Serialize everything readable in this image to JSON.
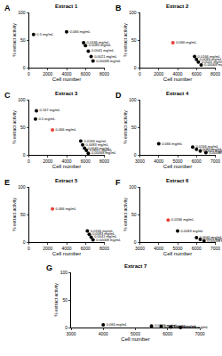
{
  "chart_data": [
    {
      "type": "scatter",
      "panel_label": "A",
      "title": "Extract 1",
      "x_label": "Cell number",
      "y_label": "% extract activity",
      "x": [
        500,
        4000,
        5800,
        6000,
        6300,
        6600,
        6800
      ],
      "values": [
        60,
        65,
        45,
        40,
        30,
        20,
        12
      ],
      "annotations": [
        "0.5 mg/mL",
        "0.066 mg/mL",
        "0.0166 mg/mL",
        "0.0083 mg/mL",
        "0.0041 mg/mL",
        "0.0021 mg/mL",
        "0.00068 mg/mL"
      ],
      "colors": [
        "#000000",
        "#000000",
        "#000000",
        "#000000",
        "#000000",
        "#000000",
        "#000000"
      ],
      "xlim": [
        0,
        8000
      ],
      "xticks": [
        0,
        2000,
        4000,
        6000,
        8000
      ],
      "ylim": [
        0,
        100
      ],
      "yticks": [
        0,
        50,
        100
      ]
    },
    {
      "type": "scatter",
      "panel_label": "B",
      "title": "Extract 2",
      "x_label": "Cell number",
      "y_label": "% extract activity",
      "x": [
        3500,
        5800,
        6000,
        6200,
        6500
      ],
      "values": [
        45,
        20,
        15,
        10,
        5
      ],
      "annotations": [
        "0.066 mg/mL",
        "0.0166 mg/mL",
        "0.0083 mg/mL",
        "0.0041 mg/mL",
        "0.00068 mg/mL"
      ],
      "colors": [
        "#e8413a",
        "#000000",
        "#000000",
        "#000000",
        "#000000"
      ],
      "xlim": [
        0,
        8000
      ],
      "xticks": [
        0,
        2000,
        4000,
        6000,
        8000
      ],
      "ylim": [
        0,
        100
      ],
      "yticks": [
        0,
        50,
        100
      ]
    },
    {
      "type": "scatter",
      "panel_label": "C",
      "title": "Extract 3",
      "x_label": "Cell number",
      "y_label": "% extract activity",
      "x": [
        800,
        700,
        2500,
        5500,
        5700,
        5900,
        6100,
        6300
      ],
      "values": [
        80,
        65,
        45,
        25,
        18,
        12,
        8,
        3
      ],
      "annotations": [
        "0.167 mg/mL",
        "0.5 mg/mL",
        "0.066 mg/mL",
        "0.0166 mg/mL",
        "0.0083 mg/mL",
        "0.0041 mg/mL",
        "0.0021 mg/mL",
        "0.00068 mg/mL"
      ],
      "colors": [
        "#000000",
        "#000000",
        "#e8413a",
        "#000000",
        "#000000",
        "#000000",
        "#000000",
        "#000000"
      ],
      "xlim": [
        0,
        8000
      ],
      "xticks": [
        0,
        2000,
        4000,
        6000,
        8000
      ],
      "ylim": [
        0,
        100
      ],
      "yticks": [
        0,
        50,
        100
      ]
    },
    {
      "type": "scatter",
      "panel_label": "D",
      "title": "Extract 4",
      "x_label": "Cell number",
      "y_label": "% extract activity",
      "x": [
        4000,
        5800,
        6000,
        6200,
        6500
      ],
      "values": [
        20,
        14,
        10,
        7,
        4
      ],
      "annotations": [
        "0.066 mg/mL",
        "0.0166 mg/mL",
        "0.0083 mg/mL",
        "0.0041 mg/mL",
        "0.00068 mg/mL"
      ],
      "colors": [
        "#000000",
        "#000000",
        "#000000",
        "#000000",
        "#000000"
      ],
      "xlim": [
        3000,
        7000
      ],
      "xticks": [
        3000,
        4000,
        5000,
        6000,
        7000
      ],
      "ylim": [
        0,
        100
      ],
      "yticks": [
        0,
        50,
        100
      ]
    },
    {
      "type": "scatter",
      "panel_label": "E",
      "title": "Extract 5",
      "x_label": "Cell number",
      "y_label": "% extract activity",
      "x": [
        2500,
        6200,
        6400,
        6600,
        6800
      ],
      "values": [
        60,
        20,
        14,
        9,
        4
      ],
      "annotations": [
        "0.066 mg/mL",
        "0.0166 mg/mL",
        "0.0083 mg/mL",
        "0.0041 mg/mL",
        "0.00068 mg/mL"
      ],
      "colors": [
        "#e8413a",
        "#000000",
        "#000000",
        "#000000",
        "#000000"
      ],
      "xlim": [
        0,
        8000
      ],
      "xticks": [
        0,
        2000,
        4000,
        6000,
        8000
      ],
      "ylim": [
        0,
        100
      ],
      "yticks": [
        0,
        50,
        100
      ]
    },
    {
      "type": "scatter",
      "panel_label": "F",
      "title": "Extract 6",
      "x_label": "Cell number",
      "y_label": "% extract activity",
      "x": [
        4500,
        5000,
        6000,
        6200,
        6400
      ],
      "values": [
        40,
        20,
        8,
        5,
        2
      ],
      "annotations": [
        "0.0166 mg/mL",
        "0.0083 mg/mL",
        "0.0041 mg/mL",
        "0.0021 mg/mL",
        "0.00068 mg/mL"
      ],
      "colors": [
        "#e8413a",
        "#000000",
        "#000000",
        "#000000",
        "#000000"
      ],
      "xlim": [
        3000,
        7000
      ],
      "xticks": [
        3000,
        4000,
        5000,
        6000,
        7000
      ],
      "ylim": [
        0,
        100
      ],
      "yticks": [
        0,
        50,
        100
      ]
    },
    {
      "type": "scatter",
      "panel_label": "G",
      "title": "Extract 7",
      "x_label": "Cell number",
      "y_label": "% extract activity",
      "x": [
        4000,
        5500,
        5800,
        6100,
        6400
      ],
      "values": [
        5,
        3,
        2,
        1,
        0
      ],
      "annotations": [
        "0.066 mg/mL",
        "0.0166 mg/mL",
        "0.0083 mg/mL",
        "0.0041 mg/mL",
        "0.00068 mg/mL"
      ],
      "colors": [
        "#000000",
        "#000000",
        "#000000",
        "#000000",
        "#000000"
      ],
      "xlim": [
        3000,
        7000
      ],
      "xticks": [
        3000,
        4000,
        5000,
        6000,
        7000
      ],
      "ylim": [
        0,
        100
      ],
      "yticks": [
        0,
        50,
        100
      ]
    }
  ]
}
